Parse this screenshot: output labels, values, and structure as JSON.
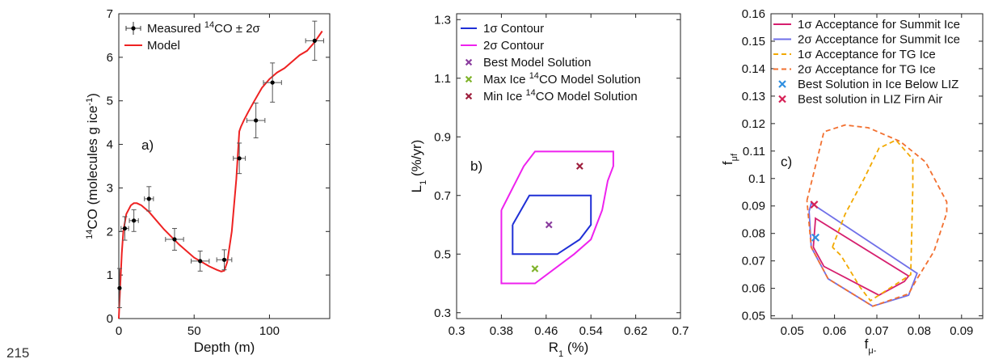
{
  "line_number": "215",
  "chart_data": [
    {
      "type": "scatter",
      "panel_label": "a)",
      "xlabel": "Depth (m)",
      "ylabel_parts": {
        "pre": "14",
        "mid": "CO (molecules g ice",
        "sup": "-1",
        "post": ")"
      },
      "xlim": [
        0,
        140
      ],
      "ylim": [
        0,
        7
      ],
      "xticks": [
        0,
        50,
        100
      ],
      "yticks": [
        0,
        1,
        2,
        3,
        4,
        5,
        6,
        7
      ],
      "grid": false,
      "legend_position": "top-left",
      "legend": [
        {
          "label_parts": {
            "pre": "Measured ",
            "sup": "14",
            "post": "CO ± 2σ"
          },
          "marker": "errorbar"
        },
        {
          "label": "Model",
          "marker": "line",
          "color": "#ee2222"
        }
      ],
      "measured": [
        {
          "x": 0.5,
          "y": 0.7,
          "xerr": 0.5,
          "yerr": 0.45
        },
        {
          "x": 4,
          "y": 2.07,
          "xerr": 2.5,
          "yerr": 0.27
        },
        {
          "x": 10,
          "y": 2.25,
          "xerr": 3,
          "yerr": 0.25
        },
        {
          "x": 20,
          "y": 2.75,
          "xerr": 3,
          "yerr": 0.28
        },
        {
          "x": 37,
          "y": 1.82,
          "xerr": 6,
          "yerr": 0.25
        },
        {
          "x": 54,
          "y": 1.32,
          "xerr": 6,
          "yerr": 0.23
        },
        {
          "x": 70,
          "y": 1.35,
          "xerr": 5,
          "yerr": 0.23
        },
        {
          "x": 80,
          "y": 3.68,
          "xerr": 4,
          "yerr": 0.35
        },
        {
          "x": 91,
          "y": 4.55,
          "xerr": 6,
          "yerr": 0.4
        },
        {
          "x": 102,
          "y": 5.42,
          "xerr": 6,
          "yerr": 0.45
        },
        {
          "x": 130,
          "y": 6.38,
          "xerr": 6,
          "yerr": 0.45
        }
      ],
      "model": {
        "color": "#ee2222",
        "x": [
          0,
          1,
          2,
          3,
          5,
          8,
          10,
          12,
          15,
          20,
          25,
          30,
          40,
          50,
          60,
          65,
          68,
          70,
          72,
          75,
          78,
          80,
          81,
          83,
          86,
          90,
          95,
          100,
          105,
          110,
          115,
          120,
          125,
          130,
          135
        ],
        "y": [
          0,
          0.8,
          1.5,
          2.0,
          2.4,
          2.6,
          2.65,
          2.65,
          2.6,
          2.45,
          2.25,
          2.05,
          1.7,
          1.4,
          1.2,
          1.12,
          1.08,
          1.1,
          1.3,
          2.0,
          3.2,
          4.3,
          4.4,
          4.55,
          4.75,
          5.0,
          5.3,
          5.5,
          5.65,
          5.75,
          5.9,
          6.05,
          6.15,
          6.35,
          6.6
        ]
      }
    },
    {
      "type": "line",
      "panel_label": "b)",
      "xlabel_parts": {
        "pre": "R",
        "sub": "1",
        "post": " (%)"
      },
      "ylabel_parts": {
        "pre": "L",
        "sub": "1",
        "post": " (%/yr)"
      },
      "xlim": [
        0.3,
        0.7
      ],
      "ylim": [
        0.28,
        1.32
      ],
      "xticks": [
        "0.3",
        "0.38",
        "0.46",
        "0.54",
        "0.62",
        "0.7"
      ],
      "yticks": [
        "0.3",
        "0.5",
        "0.7",
        "0.9",
        "1.1",
        "1.3"
      ],
      "grid": false,
      "legend_position": "top-left",
      "series": [
        {
          "name": "1σ Contour",
          "color": "#1f2fd6",
          "kind": "line",
          "x": [
            0.4,
            0.43,
            0.54,
            0.54,
            0.52,
            0.48,
            0.4,
            0.4
          ],
          "y": [
            0.6,
            0.7,
            0.7,
            0.6,
            0.55,
            0.5,
            0.5,
            0.6
          ]
        },
        {
          "name": "2σ Contour",
          "color": "#ee22ee",
          "kind": "line",
          "x": [
            0.38,
            0.42,
            0.44,
            0.58,
            0.58,
            0.57,
            0.56,
            0.54,
            0.51,
            0.44,
            0.38,
            0.38
          ],
          "y": [
            0.65,
            0.8,
            0.85,
            0.85,
            0.8,
            0.75,
            0.65,
            0.55,
            0.5,
            0.4,
            0.4,
            0.65
          ]
        },
        {
          "name": "Best Model Solution",
          "color": "#8a3d9e",
          "kind": "x",
          "x": [
            0.465
          ],
          "y": [
            0.6
          ]
        },
        {
          "name_parts": {
            "pre": "Max Ice ",
            "sup": "14",
            "post": "CO Model Solution"
          },
          "color": "#7fb32a",
          "kind": "x",
          "x": [
            0.44
          ],
          "y": [
            0.45
          ]
        },
        {
          "name_parts": {
            "pre": "Min Ice ",
            "sup": "14",
            "post": "CO Model Solution"
          },
          "color": "#9e1f3d",
          "kind": "x",
          "x": [
            0.52
          ],
          "y": [
            0.8
          ]
        }
      ]
    },
    {
      "type": "line",
      "panel_label": "c)",
      "xlabel_parts": {
        "pre": "f",
        "sub": "μ-"
      },
      "ylabel_parts": {
        "pre": "f",
        "sub": "μf"
      },
      "xlim": [
        0.045,
        0.095
      ],
      "ylim": [
        0.049,
        0.16
      ],
      "xticks": [
        "0.05",
        "0.06",
        "0.07",
        "0.08",
        "0.09"
      ],
      "yticks": [
        "0.05",
        "0.06",
        "0.07",
        "0.08",
        "0.09",
        "0.1",
        "0.11",
        "0.12",
        "0.13",
        "0.14",
        "0.15",
        "0.16"
      ],
      "grid": false,
      "legend_position": "top",
      "series": [
        {
          "name": "1σ Acceptance for Summit Ice",
          "color": "#d61f6e",
          "kind": "line",
          "x": [
            0.0555,
            0.0555,
            0.0775,
            0.0765,
            0.0705,
            0.0575,
            0.055,
            0.0555
          ],
          "y": [
            0.085,
            0.0855,
            0.0645,
            0.0625,
            0.0575,
            0.068,
            0.075,
            0.085
          ]
        },
        {
          "name": "2σ Acceptance for Summit Ice",
          "color": "#6f6fe8",
          "kind": "line",
          "x": [
            0.054,
            0.0545,
            0.0795,
            0.0775,
            0.069,
            0.0585,
            0.0545,
            0.054
          ],
          "y": [
            0.088,
            0.091,
            0.0655,
            0.0575,
            0.0535,
            0.0635,
            0.075,
            0.088
          ]
        },
        {
          "name": "1σ Acceptance for TG Ice",
          "color": "#f2a900",
          "kind": "dash",
          "x": [
            0.0595,
            0.0625,
            0.067,
            0.0705,
            0.0745,
            0.0785,
            0.0785,
            0.078,
            0.072,
            0.0685,
            0.066,
            0.0635,
            0.0615,
            0.0595
          ],
          "y": [
            0.075,
            0.087,
            0.1,
            0.111,
            0.114,
            0.107,
            0.097,
            0.065,
            0.059,
            0.0555,
            0.0605,
            0.067,
            0.072,
            0.075
          ]
        },
        {
          "name": "2σ Acceptance for TG Ice",
          "color": "#f27030",
          "kind": "dash",
          "x": [
            0.0535,
            0.0575,
            0.0625,
            0.068,
            0.0755,
            0.0815,
            0.0865,
            0.0865,
            0.0835,
            0.0795,
            0.0775,
            0.069,
            0.0585,
            0.0545,
            0.0535
          ],
          "y": [
            0.092,
            0.117,
            0.1195,
            0.1185,
            0.1135,
            0.106,
            0.0915,
            0.0875,
            0.0735,
            0.0635,
            0.058,
            0.0535,
            0.0635,
            0.075,
            0.092
          ]
        },
        {
          "name": "Best Solution in Ice Below LIZ",
          "color": "#2f8fe0",
          "kind": "x",
          "x": [
            0.0555
          ],
          "y": [
            0.0785
          ]
        },
        {
          "name": "Best solution in LIZ Firn Air",
          "color": "#d61f55",
          "kind": "x",
          "x": [
            0.0552
          ],
          "y": [
            0.0905
          ]
        }
      ]
    }
  ]
}
